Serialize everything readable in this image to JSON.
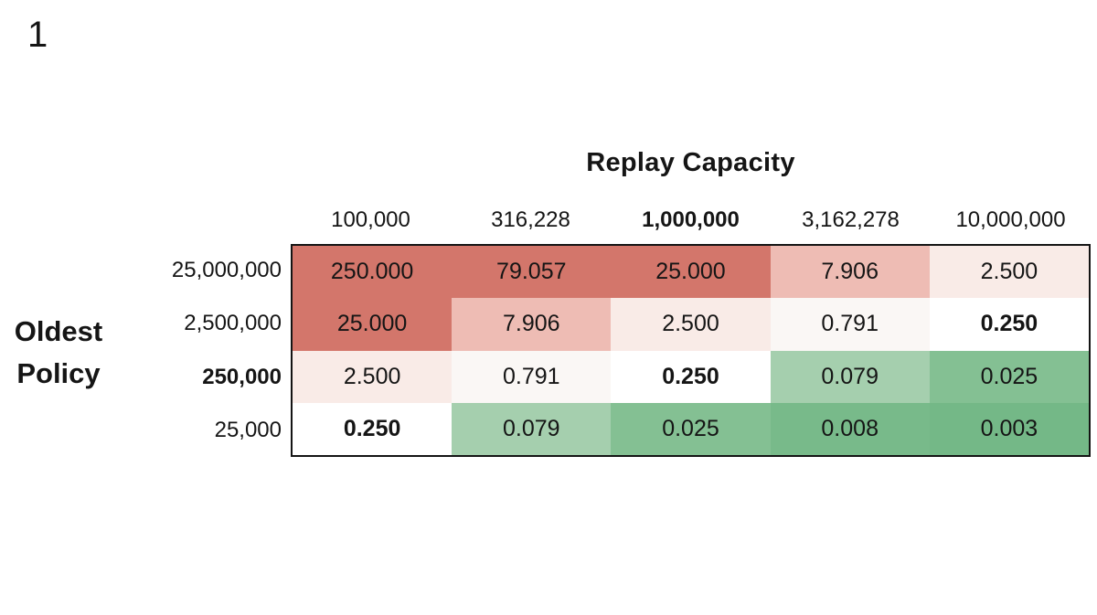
{
  "slide_number": "1",
  "heatmap": {
    "title": "Replay Capacity",
    "row_axis_label": "Oldest Policy",
    "columns": [
      {
        "label": "100,000",
        "bold": false
      },
      {
        "label": "316,228",
        "bold": false
      },
      {
        "label": "1,000,000",
        "bold": true
      },
      {
        "label": "3,162,278",
        "bold": false
      },
      {
        "label": "10,000,000",
        "bold": false
      }
    ],
    "rows": [
      {
        "label": "25,000,000",
        "bold": false,
        "cells": [
          {
            "value": "250.000",
            "bg": "#d3766b",
            "bold": false
          },
          {
            "value": "79.057",
            "bg": "#d3766b",
            "bold": false
          },
          {
            "value": "25.000",
            "bg": "#d3766b",
            "bold": false
          },
          {
            "value": "7.906",
            "bg": "#eebcb4",
            "bold": false
          },
          {
            "value": "2.500",
            "bg": "#f9ebe7",
            "bold": false
          }
        ]
      },
      {
        "label": "2,500,000",
        "bold": false,
        "cells": [
          {
            "value": "25.000",
            "bg": "#d3766b",
            "bold": false
          },
          {
            "value": "7.906",
            "bg": "#eebcb4",
            "bold": false
          },
          {
            "value": "2.500",
            "bg": "#f9ebe7",
            "bold": false
          },
          {
            "value": "0.791",
            "bg": "#faf7f5",
            "bold": false
          },
          {
            "value": "0.250",
            "bg": "#ffffff",
            "bold": true
          }
        ]
      },
      {
        "label": "250,000",
        "bold": true,
        "cells": [
          {
            "value": "2.500",
            "bg": "#f9ebe7",
            "bold": false
          },
          {
            "value": "0.791",
            "bg": "#faf7f5",
            "bold": false
          },
          {
            "value": "0.250",
            "bg": "#ffffff",
            "bold": true
          },
          {
            "value": "0.079",
            "bg": "#a5cfae",
            "bold": false
          },
          {
            "value": "0.025",
            "bg": "#84c093",
            "bold": false
          }
        ]
      },
      {
        "label": "25,000",
        "bold": false,
        "cells": [
          {
            "value": "0.250",
            "bg": "#ffffff",
            "bold": true
          },
          {
            "value": "0.079",
            "bg": "#a5cfae",
            "bold": false
          },
          {
            "value": "0.025",
            "bg": "#84c093",
            "bold": false
          },
          {
            "value": "0.008",
            "bg": "#78ba8a",
            "bold": false
          },
          {
            "value": "0.003",
            "bg": "#74b887",
            "bold": false
          }
        ]
      }
    ]
  },
  "chart_data": {
    "type": "heatmap",
    "title": "Replay Capacity",
    "xlabel": "Replay Capacity",
    "ylabel": "Oldest Policy",
    "x_categories": [
      "100,000",
      "316,228",
      "1,000,000",
      "3,162,278",
      "10,000,000"
    ],
    "y_categories": [
      "25,000,000",
      "2,500,000",
      "250,000",
      "25,000"
    ],
    "values": [
      [
        250.0,
        79.057,
        25.0,
        7.906,
        2.5
      ],
      [
        25.0,
        7.906,
        2.5,
        0.791,
        0.25
      ],
      [
        2.5,
        0.791,
        0.25,
        0.079,
        0.025
      ],
      [
        0.25,
        0.079,
        0.025,
        0.008,
        0.003
      ]
    ],
    "colormap": {
      "high_color": "#d3766b",
      "mid_color": "#ffffff",
      "low_color": "#74b887",
      "midpoint": 0.25
    },
    "grid": false,
    "legend": false
  }
}
